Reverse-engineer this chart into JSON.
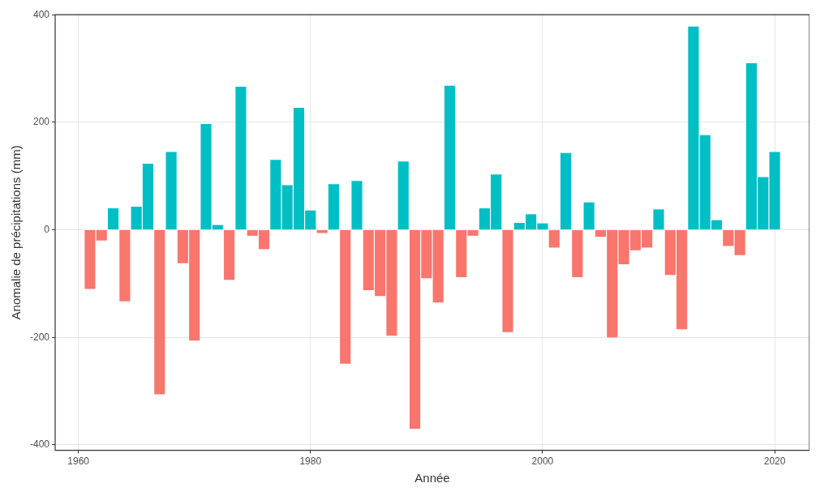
{
  "chart_data": {
    "type": "bar",
    "xlabel": "Année",
    "ylabel": "Anomalie de précipitations (mm)",
    "x": [
      1961,
      1962,
      1963,
      1964,
      1965,
      1966,
      1967,
      1968,
      1969,
      1970,
      1971,
      1972,
      1973,
      1974,
      1975,
      1976,
      1977,
      1978,
      1979,
      1980,
      1981,
      1982,
      1983,
      1984,
      1985,
      1986,
      1987,
      1988,
      1989,
      1990,
      1991,
      1992,
      1993,
      1994,
      1995,
      1996,
      1997,
      1998,
      1999,
      2000,
      2001,
      2002,
      2003,
      2004,
      2005,
      2006,
      2007,
      2008,
      2009,
      2010,
      2011,
      2012,
      2013,
      2014,
      2015,
      2016,
      2017,
      2018,
      2019,
      2020
    ],
    "values": [
      -110,
      -20,
      40,
      -133,
      43,
      123,
      -306,
      145,
      -62,
      -206,
      197,
      9,
      -93,
      266,
      -11,
      -36,
      130,
      83,
      227,
      36,
      -6,
      85,
      -249,
      91,
      -112,
      -123,
      -197,
      127,
      -370,
      -90,
      -135,
      268,
      -88,
      -11,
      40,
      103,
      -190,
      13,
      29,
      12,
      -33,
      143,
      -88,
      51,
      -13,
      -200,
      -64,
      -38,
      -33,
      38,
      -84,
      -185,
      378,
      176,
      18,
      -30,
      -47,
      310,
      98,
      145
    ],
    "colors": [
      "#f8766d",
      "#f8766d",
      "#00bfc4",
      "#f8766d",
      "#00bfc4",
      "#00bfc4",
      "#f8766d",
      "#00bfc4",
      "#f8766d",
      "#f8766d",
      "#00bfc4",
      "#00bfc4",
      "#f8766d",
      "#00bfc4",
      "#f8766d",
      "#f8766d",
      "#00bfc4",
      "#00bfc4",
      "#00bfc4",
      "#00bfc4",
      "#f8766d",
      "#00bfc4",
      "#f8766d",
      "#00bfc4",
      "#f8766d",
      "#f8766d",
      "#f8766d",
      "#00bfc4",
      "#f8766d",
      "#f8766d",
      "#f8766d",
      "#00bfc4",
      "#f8766d",
      "#f8766d",
      "#00bfc4",
      "#00bfc4",
      "#f8766d",
      "#00bfc4",
      "#00bfc4",
      "#00bfc4",
      "#f8766d",
      "#00bfc4",
      "#f8766d",
      "#00bfc4",
      "#f8766d",
      "#f8766d",
      "#f8766d",
      "#f8766d",
      "#f8766d",
      "#00bfc4",
      "#f8766d",
      "#f8766d",
      "#00bfc4",
      "#00bfc4",
      "#00bfc4",
      "#f8766d",
      "#f8766d",
      "#00bfc4",
      "#00bfc4",
      "#00bfc4"
    ],
    "xlim": [
      1958,
      2023
    ],
    "xticks": [
      1960,
      1980,
      2000,
      2020
    ],
    "ylim": [
      -410,
      400
    ],
    "yticks": [
      -400,
      -200,
      0,
      200,
      400
    ],
    "grid": true,
    "legend": false
  }
}
